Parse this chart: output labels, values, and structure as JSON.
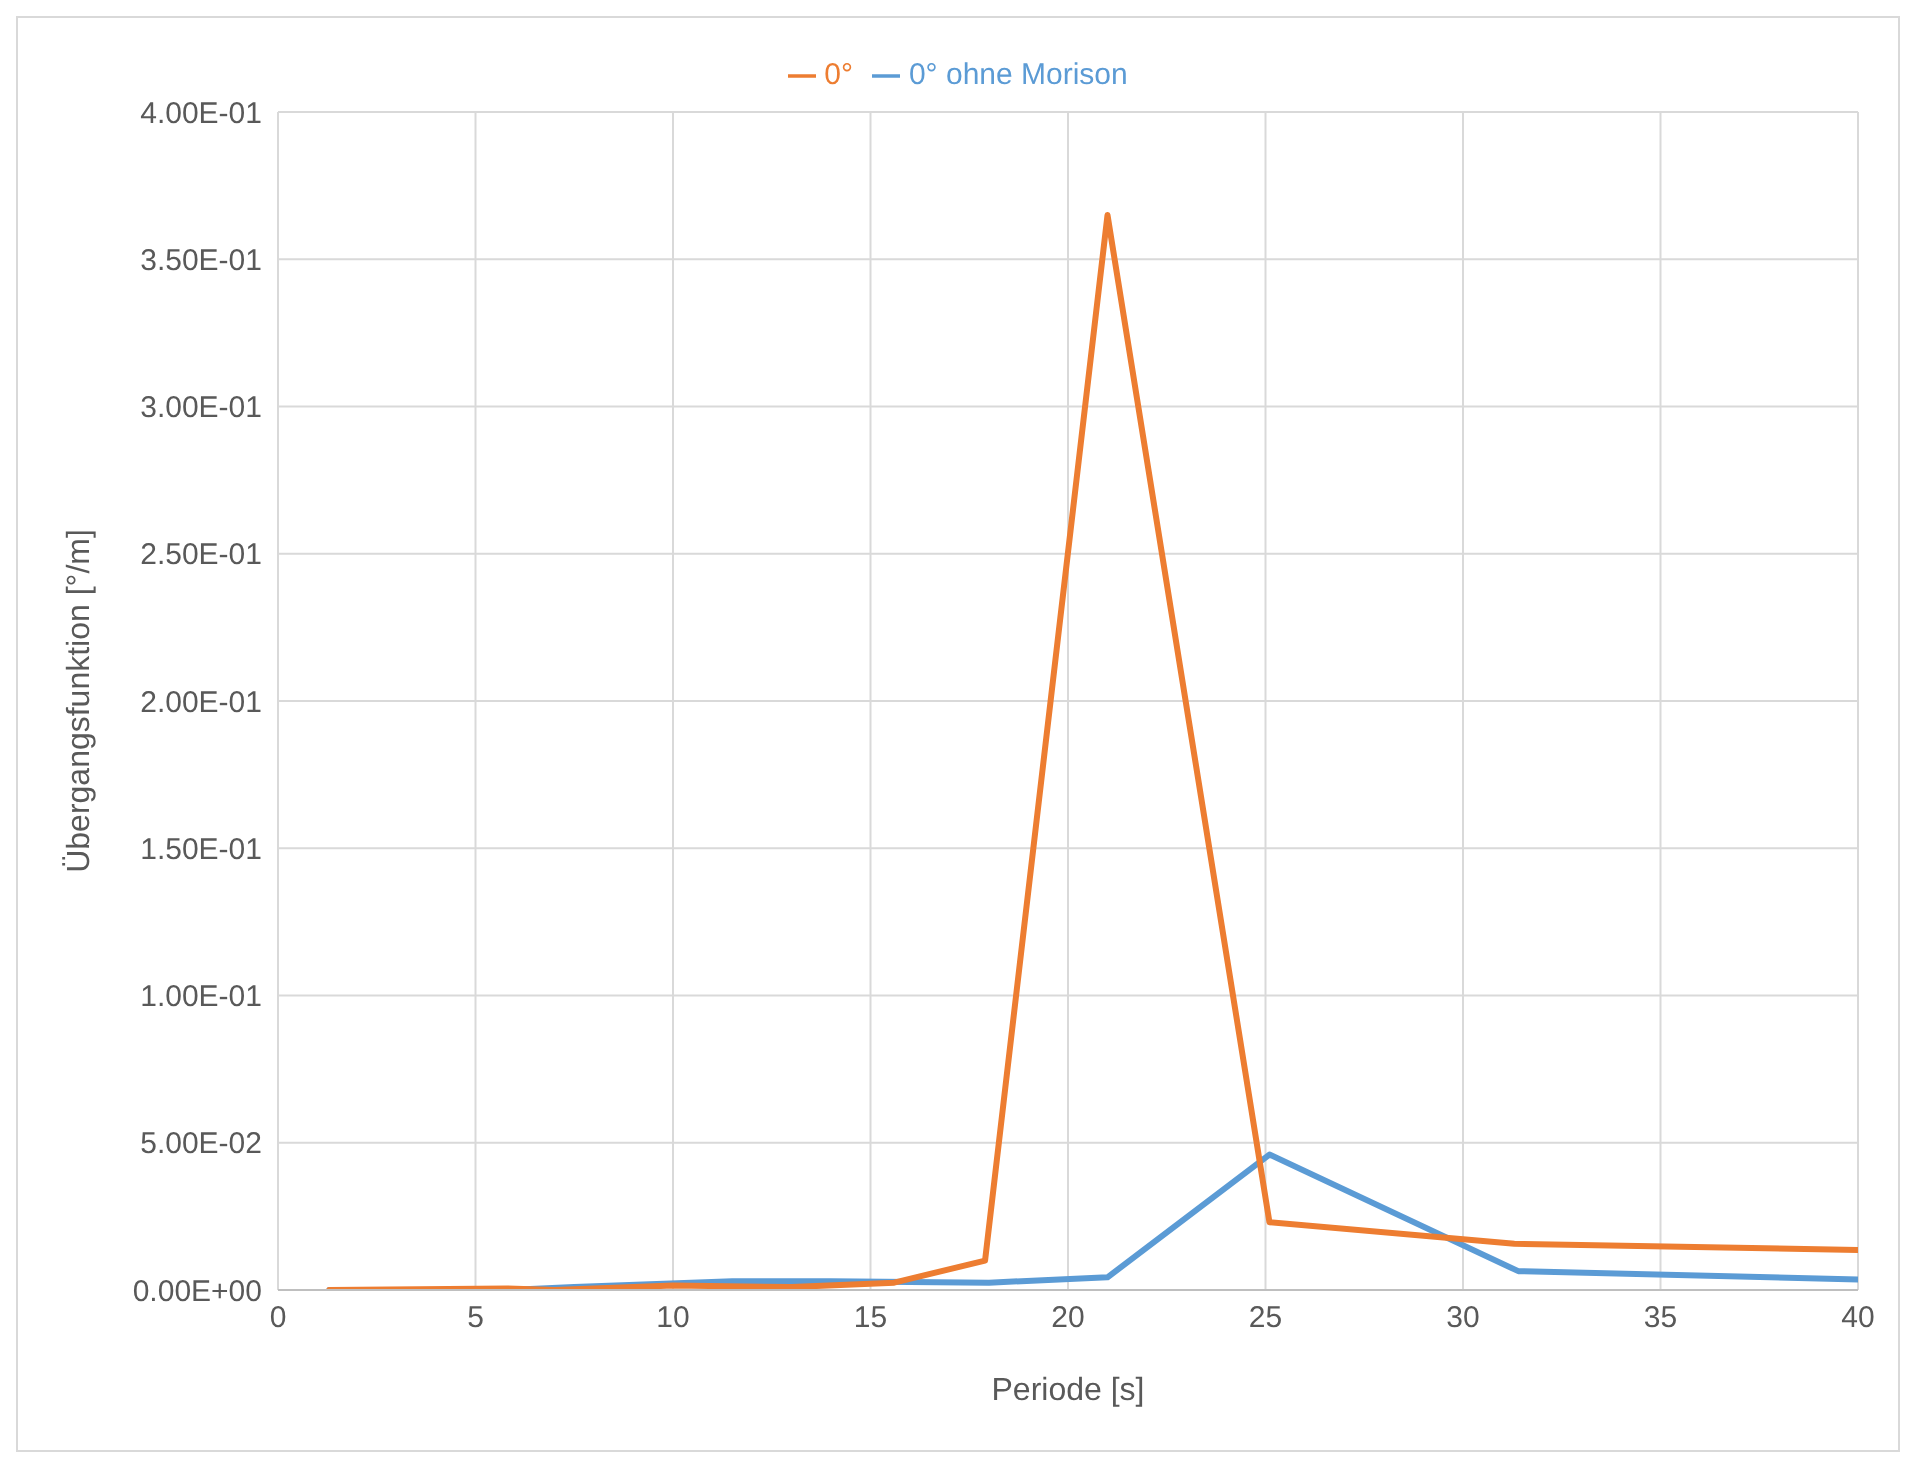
{
  "chart_data": {
    "type": "line",
    "xlabel": "Periode [s]",
    "ylabel": "Übergangsfunktion [°/m]",
    "series": [
      {
        "name": "0° ohne Morison",
        "color": "#5b9bd5",
        "x": [
          1.3,
          5.8,
          7.5,
          11.5,
          14,
          18,
          21,
          25.1,
          31.4,
          40
        ],
        "values": [
          0,
          0,
          0.001,
          0.003,
          0.003,
          0.0025,
          0.0043,
          0.046,
          0.0064,
          0.0036
        ]
      },
      {
        "name": "0°",
        "color": "#ed7d31",
        "x": [
          1.3,
          5.8,
          7,
          10,
          13,
          15.6,
          17.9,
          21,
          25.1,
          31.3,
          40
        ],
        "values": [
          0,
          0.0005,
          0,
          0.0015,
          0.001,
          0.0025,
          0.01,
          0.365,
          0.023,
          0.0157,
          0.0136
        ]
      }
    ],
    "xlim": [
      0,
      40
    ],
    "xticks": [
      0,
      5,
      10,
      15,
      20,
      25,
      30,
      35,
      40
    ],
    "ylim": [
      0,
      0.4
    ],
    "yticks": [
      {
        "value": 0,
        "label": "0.00E+00"
      },
      {
        "value": 0.05,
        "label": "5.00E-02"
      },
      {
        "value": 0.1,
        "label": "1.00E-01"
      },
      {
        "value": 0.15,
        "label": "1.50E-01"
      },
      {
        "value": 0.2,
        "label": "2.00E-01"
      },
      {
        "value": 0.25,
        "label": "2.50E-01"
      },
      {
        "value": 0.3,
        "label": "3.00E-01"
      },
      {
        "value": 0.35,
        "label": "3.50E-01"
      },
      {
        "value": 0.4,
        "label": "4.00E-01"
      }
    ],
    "grid": true,
    "legend": "top",
    "marker": "none",
    "line_style": "solid"
  }
}
